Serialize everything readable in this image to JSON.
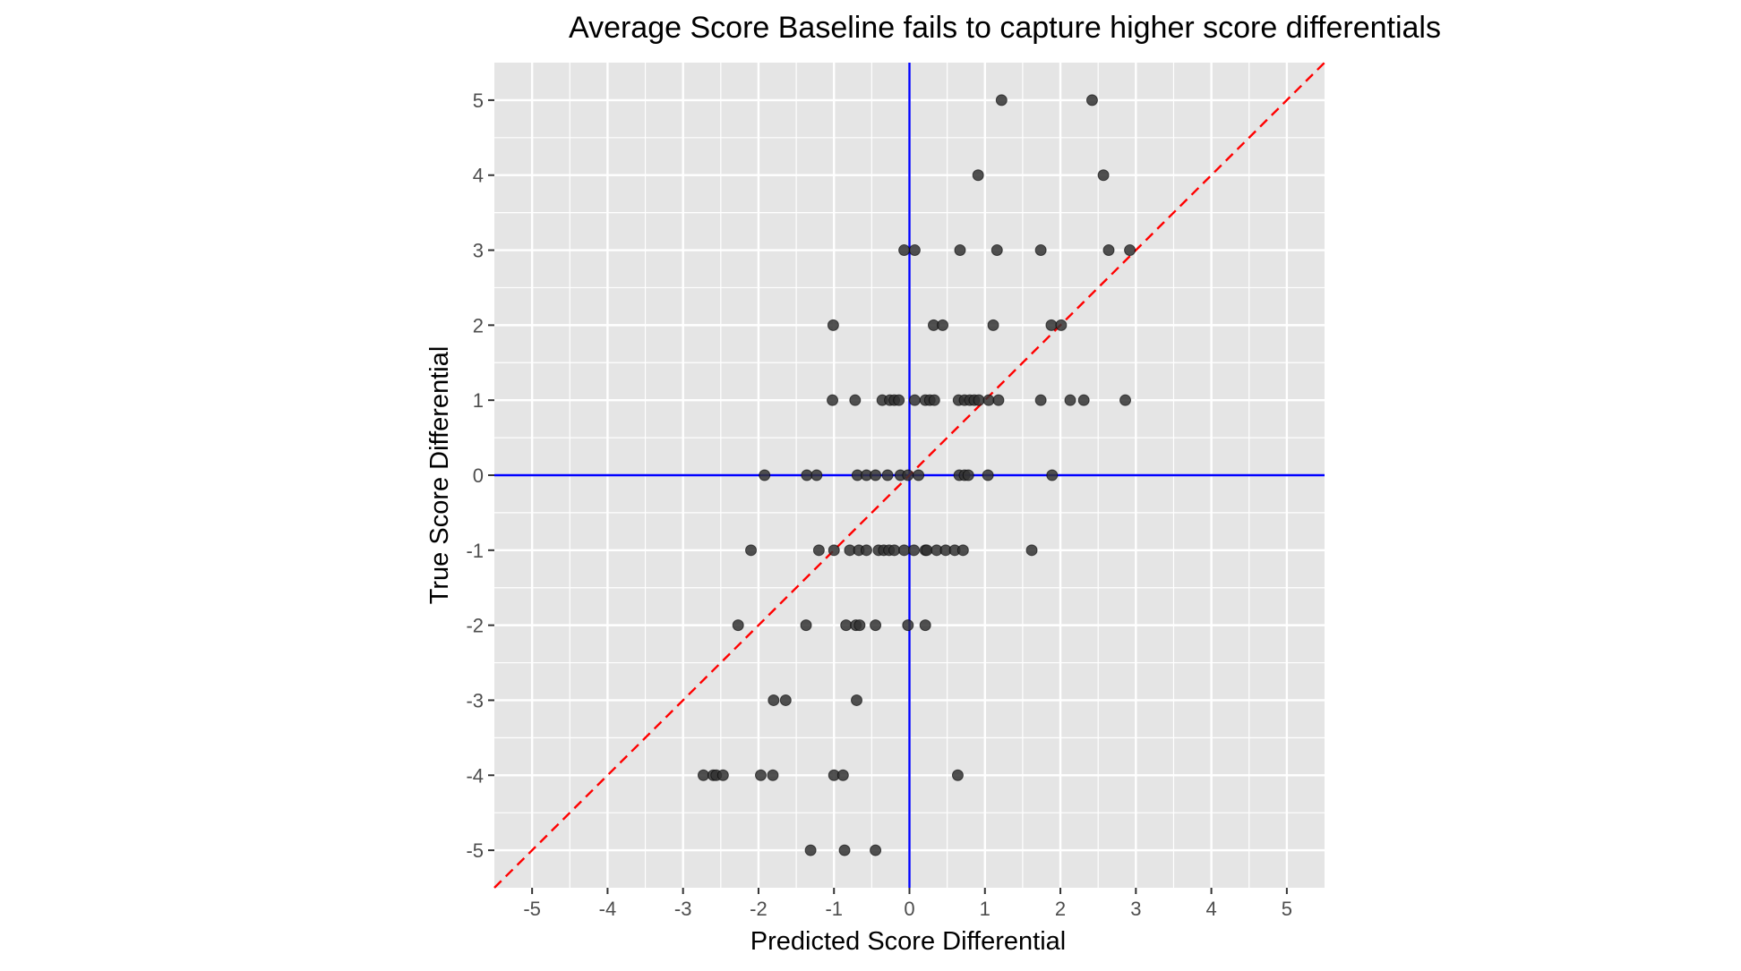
{
  "chart_data": {
    "type": "scatter",
    "title": "Average Score Baseline fails to capture higher score differentials",
    "xlabel": "Predicted Score Differential",
    "ylabel": "True Score Differential",
    "xlim": [
      -5.5,
      5.5
    ],
    "ylim": [
      -5.5,
      5.5
    ],
    "x_ticks": [
      "-5",
      "-4",
      "-3",
      "-2",
      "-1",
      "0",
      "1",
      "2",
      "3",
      "4",
      "5"
    ],
    "y_ticks": [
      "-5",
      "-4",
      "-3",
      "-2",
      "-1",
      "0",
      "1",
      "2",
      "3",
      "4",
      "5"
    ],
    "grid": true,
    "reference_lines": {
      "vertical_x": 0,
      "horizontal_y": 0,
      "diagonal": "y = x",
      "axis_line_color": "#0000ff",
      "diagonal_color": "#ff0000"
    },
    "colors": {
      "panel_background": "#e5e5e5",
      "grid": "#ffffff",
      "point": "#333333"
    },
    "points": [
      {
        "x": 1.22,
        "y": 5
      },
      {
        "x": 2.42,
        "y": 5
      },
      {
        "x": 0.91,
        "y": 4
      },
      {
        "x": 2.57,
        "y": 4
      },
      {
        "x": -0.07,
        "y": 3
      },
      {
        "x": 0.07,
        "y": 3
      },
      {
        "x": 0.67,
        "y": 3
      },
      {
        "x": 1.16,
        "y": 3
      },
      {
        "x": 1.74,
        "y": 3
      },
      {
        "x": 2.64,
        "y": 3
      },
      {
        "x": 2.92,
        "y": 3
      },
      {
        "x": -1.01,
        "y": 2
      },
      {
        "x": 0.32,
        "y": 2
      },
      {
        "x": 0.44,
        "y": 2
      },
      {
        "x": 1.11,
        "y": 2
      },
      {
        "x": 1.88,
        "y": 2
      },
      {
        "x": 2.01,
        "y": 2
      },
      {
        "x": -1.02,
        "y": 1
      },
      {
        "x": -0.72,
        "y": 1
      },
      {
        "x": -0.36,
        "y": 1
      },
      {
        "x": -0.26,
        "y": 1
      },
      {
        "x": -0.2,
        "y": 1
      },
      {
        "x": -0.14,
        "y": 1
      },
      {
        "x": 0.07,
        "y": 1
      },
      {
        "x": 0.21,
        "y": 1
      },
      {
        "x": 0.27,
        "y": 1
      },
      {
        "x": 0.33,
        "y": 1
      },
      {
        "x": 0.65,
        "y": 1
      },
      {
        "x": 0.73,
        "y": 1
      },
      {
        "x": 0.8,
        "y": 1
      },
      {
        "x": 0.86,
        "y": 1
      },
      {
        "x": 0.92,
        "y": 1
      },
      {
        "x": 1.05,
        "y": 1
      },
      {
        "x": 1.18,
        "y": 1
      },
      {
        "x": 1.74,
        "y": 1
      },
      {
        "x": 2.13,
        "y": 1
      },
      {
        "x": 2.31,
        "y": 1
      },
      {
        "x": 2.86,
        "y": 1
      },
      {
        "x": -1.92,
        "y": 0
      },
      {
        "x": -1.36,
        "y": 0
      },
      {
        "x": -1.23,
        "y": 0
      },
      {
        "x": -0.69,
        "y": 0
      },
      {
        "x": -0.57,
        "y": 0
      },
      {
        "x": -0.45,
        "y": 0
      },
      {
        "x": -0.29,
        "y": 0
      },
      {
        "x": -0.12,
        "y": 0
      },
      {
        "x": -0.02,
        "y": 0
      },
      {
        "x": 0.12,
        "y": 0
      },
      {
        "x": 0.66,
        "y": 0
      },
      {
        "x": 0.73,
        "y": 0
      },
      {
        "x": 0.78,
        "y": 0
      },
      {
        "x": 1.04,
        "y": 0
      },
      {
        "x": 1.89,
        "y": 0
      },
      {
        "x": -2.1,
        "y": -1
      },
      {
        "x": -1.2,
        "y": -1
      },
      {
        "x": -1.0,
        "y": -1
      },
      {
        "x": -0.79,
        "y": -1
      },
      {
        "x": -0.67,
        "y": -1
      },
      {
        "x": -0.57,
        "y": -1
      },
      {
        "x": -0.41,
        "y": -1
      },
      {
        "x": -0.34,
        "y": -1
      },
      {
        "x": -0.27,
        "y": -1
      },
      {
        "x": -0.2,
        "y": -1
      },
      {
        "x": -0.07,
        "y": -1
      },
      {
        "x": 0.06,
        "y": -1
      },
      {
        "x": 0.21,
        "y": -1
      },
      {
        "x": 0.23,
        "y": -1
      },
      {
        "x": 0.36,
        "y": -1
      },
      {
        "x": 0.48,
        "y": -1
      },
      {
        "x": 0.6,
        "y": -1
      },
      {
        "x": 0.71,
        "y": -1
      },
      {
        "x": 1.62,
        "y": -1
      },
      {
        "x": -2.27,
        "y": -2
      },
      {
        "x": -1.37,
        "y": -2
      },
      {
        "x": -0.84,
        "y": -2
      },
      {
        "x": -0.71,
        "y": -2
      },
      {
        "x": -0.66,
        "y": -2
      },
      {
        "x": -0.45,
        "y": -2
      },
      {
        "x": -0.02,
        "y": -2
      },
      {
        "x": 0.21,
        "y": -2
      },
      {
        "x": -1.8,
        "y": -3
      },
      {
        "x": -1.64,
        "y": -3
      },
      {
        "x": -0.7,
        "y": -3
      },
      {
        "x": -2.73,
        "y": -4
      },
      {
        "x": -2.6,
        "y": -4
      },
      {
        "x": -2.56,
        "y": -4
      },
      {
        "x": -2.47,
        "y": -4
      },
      {
        "x": -1.97,
        "y": -4
      },
      {
        "x": -1.81,
        "y": -4
      },
      {
        "x": -1.0,
        "y": -4
      },
      {
        "x": -0.88,
        "y": -4
      },
      {
        "x": 0.64,
        "y": -4
      },
      {
        "x": -1.31,
        "y": -5
      },
      {
        "x": -0.86,
        "y": -5
      },
      {
        "x": -0.45,
        "y": -5
      }
    ]
  }
}
